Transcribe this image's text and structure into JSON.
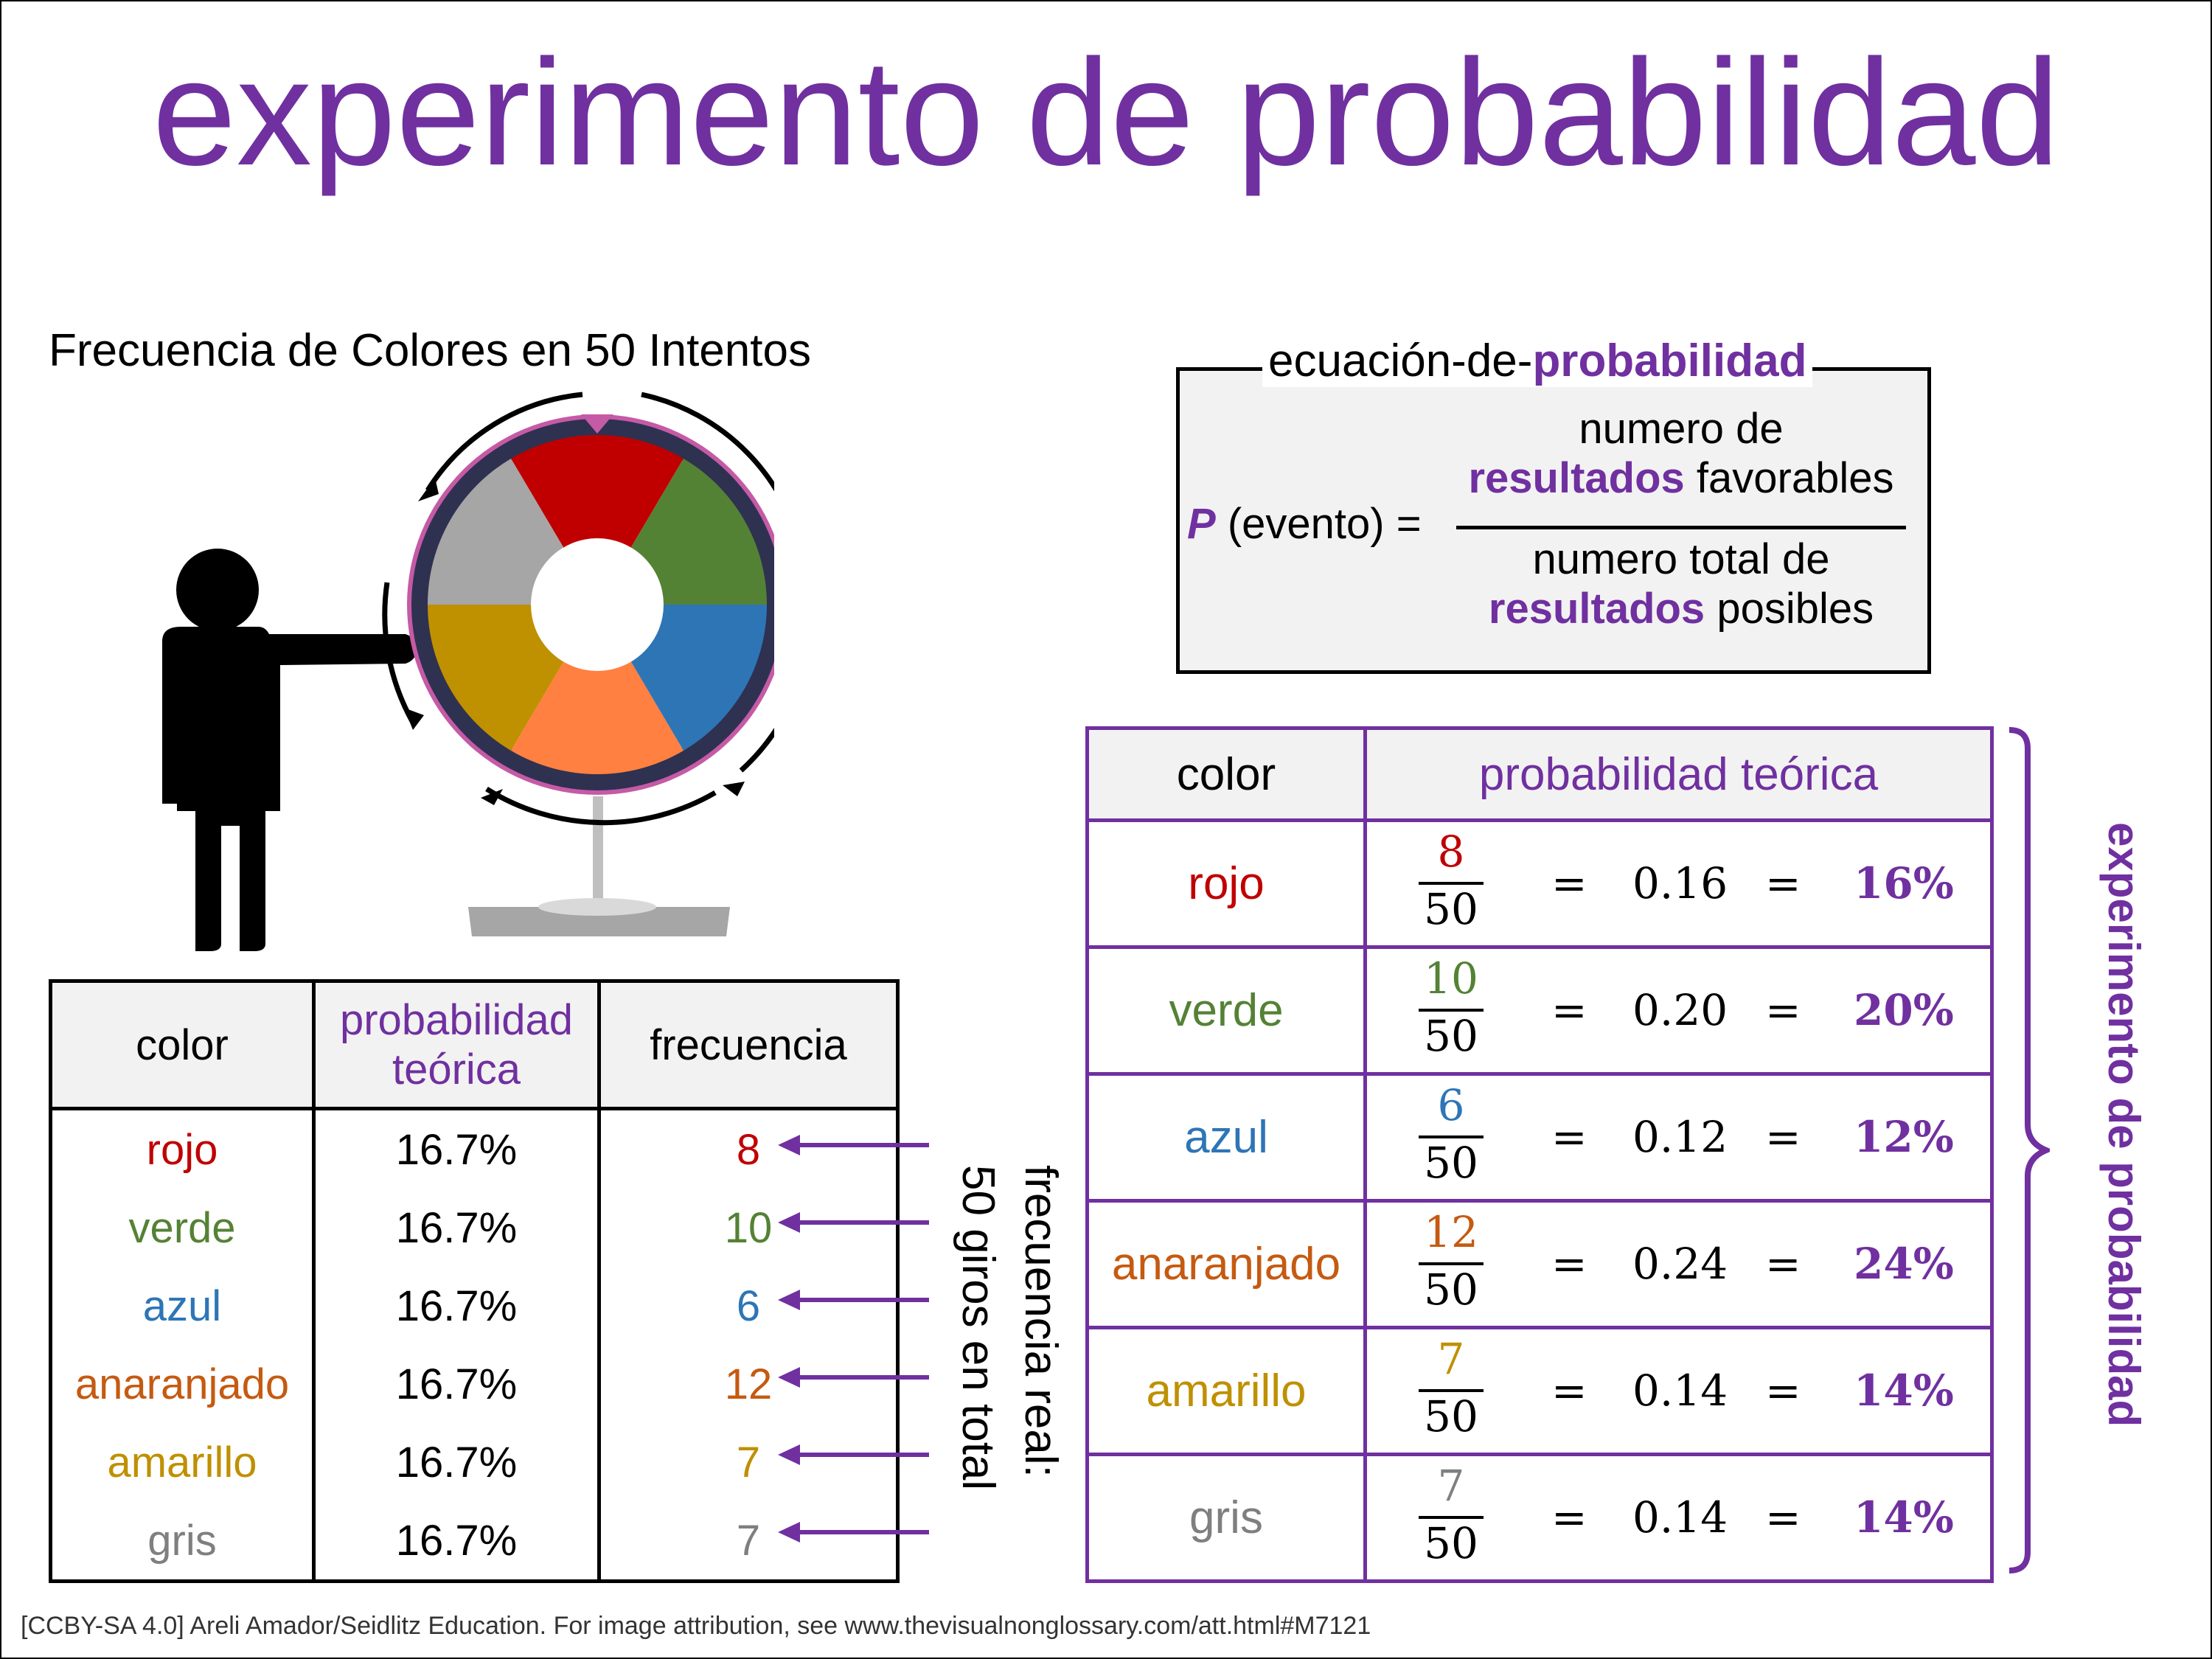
{
  "title": "experimento de probabilidad",
  "spinner_title": "Frecuencia de Colores en 50 Intentos",
  "equation": {
    "box_title_plain": "ecuación-de-",
    "box_title_bold": "probabilidad",
    "lhs_p": "P",
    "lhs_rest": "(evento) =",
    "num_line1": "numero de",
    "num_bold": "resultados",
    "num_rest": " favorables",
    "den_line1": "numero total de",
    "den_bold": "resultados",
    "den_rest": " posibles"
  },
  "colors": {
    "rojo": "#c00000",
    "verde": "#548235",
    "azul": "#2e75b6",
    "anaranjado": "#c55a11",
    "amarillo": "#bf9000",
    "gris": "#7f7f7f",
    "accent": "#7030a0"
  },
  "table1": {
    "headers": [
      "color",
      "probabilidad teórica",
      "frecuencia"
    ],
    "rows": [
      {
        "color": "rojo",
        "prob": "16.7%",
        "freq": "8"
      },
      {
        "color": "verde",
        "prob": "16.7%",
        "freq": "10"
      },
      {
        "color": "azul",
        "prob": "16.7%",
        "freq": "6"
      },
      {
        "color": "anaranjado",
        "prob": "16.7%",
        "freq": "12"
      },
      {
        "color": "amarillo",
        "prob": "16.7%",
        "freq": "7"
      },
      {
        "color": "gris",
        "prob": "16.7%",
        "freq": "7"
      }
    ]
  },
  "real_frequency_line1": "frecuencia real:",
  "real_frequency_line2": "50 giros en total",
  "table2": {
    "headers": [
      "color",
      "probabilidad teórica"
    ],
    "rows": [
      {
        "color": "rojo",
        "num": "8",
        "den": "50",
        "eq": "=",
        "dec": "0.16",
        "pct": "16%"
      },
      {
        "color": "verde",
        "num": "10",
        "den": "50",
        "eq": "=",
        "dec": "0.20",
        "pct": "20%"
      },
      {
        "color": "azul",
        "num": "6",
        "den": "50",
        "eq": "=",
        "dec": "0.12",
        "pct": "12%"
      },
      {
        "color": "anaranjado",
        "num": "12",
        "den": "50",
        "eq": "=",
        "dec": "0.24",
        "pct": "24%"
      },
      {
        "color": "amarillo",
        "num": "7",
        "den": "50",
        "eq": "=",
        "dec": "0.14",
        "pct": "14%"
      },
      {
        "color": "gris",
        "num": "7",
        "den": "50",
        "eq": "=",
        "dec": "0.14",
        "pct": "14%"
      }
    ]
  },
  "side_label": "experimento de probabilidad",
  "footer": "[CCBY-SA 4.0] Areli Amador/Seidlitz Education.  For image attribution, see www.thevisualnonglossary.com/att.html#M7121"
}
